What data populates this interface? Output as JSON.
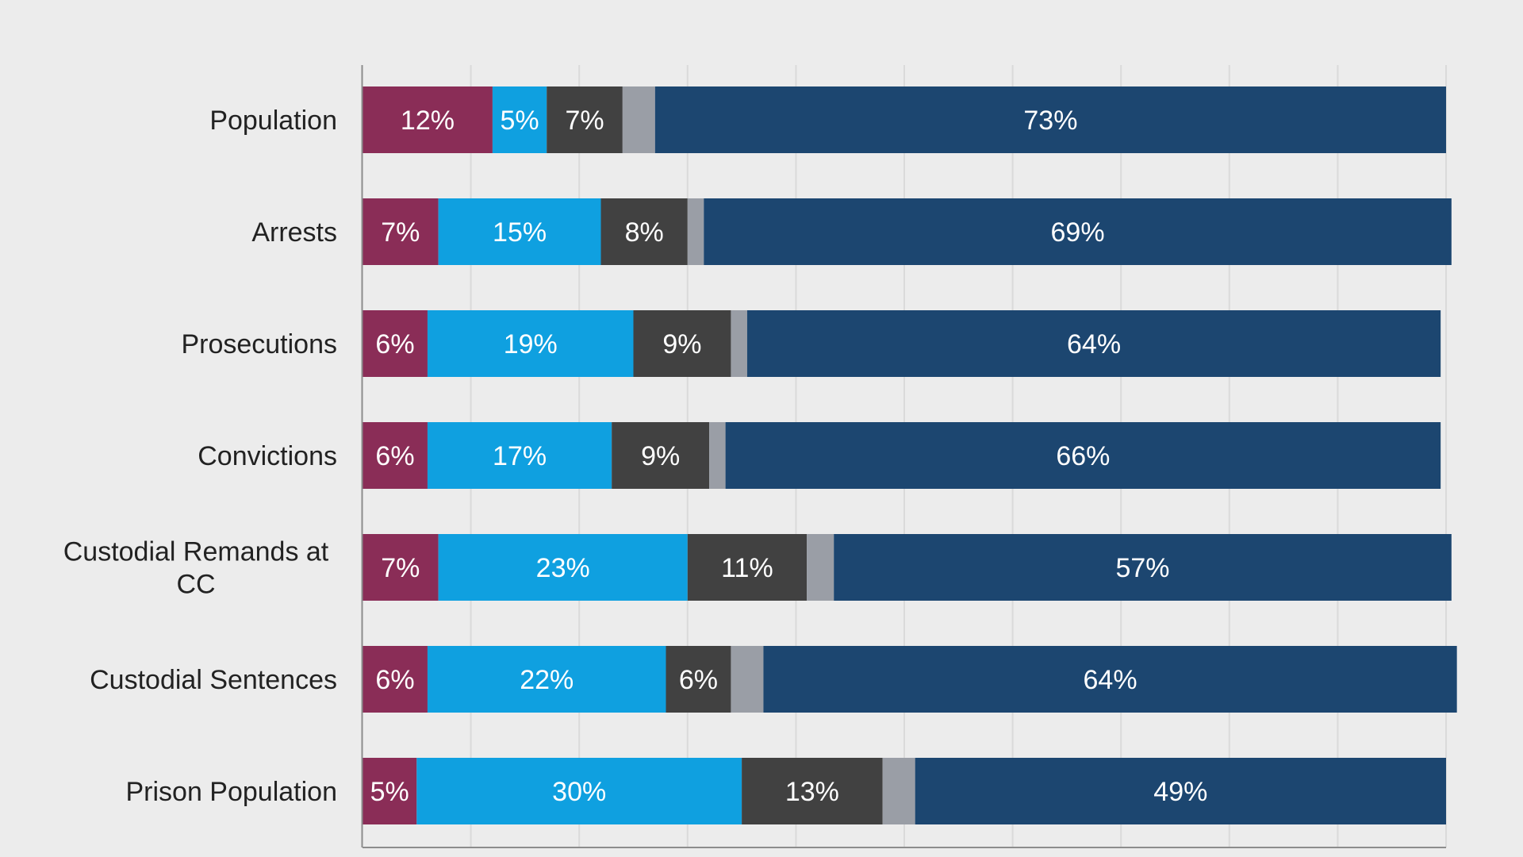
{
  "chart_data": {
    "type": "bar",
    "orientation": "horizontal",
    "stacked": true,
    "percent_stacked": true,
    "categories": [
      "Population",
      "Arrests",
      "Prosecutions",
      "Convictions",
      "Custodial Remands at CC",
      "Custodial Sentences",
      "Prison Population"
    ],
    "category_display_lines": [
      [
        "Population"
      ],
      [
        "Arrests"
      ],
      [
        "Prosecutions"
      ],
      [
        "Convictions"
      ],
      [
        "Custodial Remands at",
        "CC"
      ],
      [
        "Custodial Sentences"
      ],
      [
        "Prison Population"
      ]
    ],
    "series": [
      {
        "color": "#8a2d57",
        "values": [
          12,
          7,
          6,
          6,
          7,
          6,
          5
        ],
        "labels": [
          "12%",
          "7%",
          "6%",
          "6%",
          "7%",
          "6%",
          "5%"
        ]
      },
      {
        "color": "#0fa0e0",
        "values": [
          5,
          15,
          19,
          17,
          23,
          22,
          30
        ],
        "labels": [
          "5%",
          "15%",
          "19%",
          "17%",
          "23%",
          "22%",
          "30%"
        ]
      },
      {
        "color": "#414141",
        "values": [
          7,
          8,
          9,
          9,
          11,
          6,
          13
        ],
        "labels": [
          "7%",
          "8%",
          "9%",
          "9%",
          "11%",
          "6%",
          "13%"
        ]
      },
      {
        "color": "#9a9ea6",
        "values": [
          3,
          1.5,
          1.5,
          1.5,
          2.5,
          3,
          3
        ],
        "labels": [
          "",
          "",
          "",
          "",
          "",
          "",
          ""
        ]
      },
      {
        "color": "#1c4670",
        "values": [
          73,
          69,
          64,
          66,
          57,
          64,
          49
        ],
        "labels": [
          "73%",
          "69%",
          "64%",
          "66%",
          "57%",
          "64%",
          "49%"
        ]
      }
    ],
    "xlim": [
      0,
      100
    ],
    "grid": true,
    "legend": "none"
  }
}
